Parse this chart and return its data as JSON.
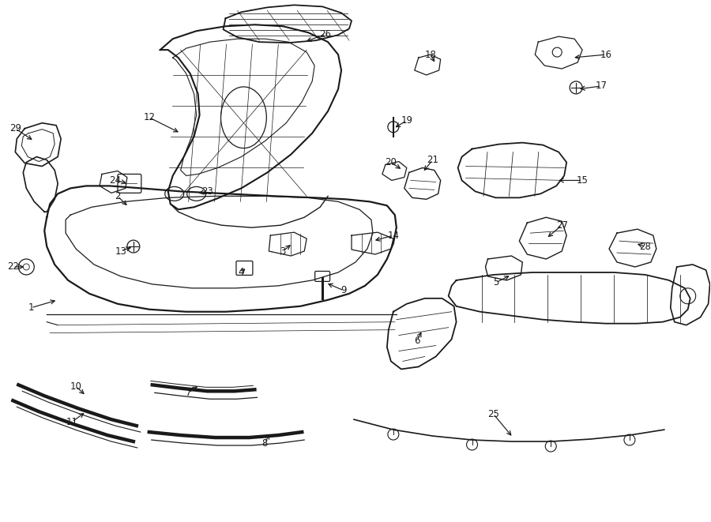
{
  "bg_color": "#ffffff",
  "line_color": "#1a1a1a",
  "fig_width": 9.0,
  "fig_height": 6.61,
  "dpi": 100,
  "labels": [
    [
      "1",
      38,
      390,
      72,
      380
    ],
    [
      "2",
      148,
      248,
      162,
      262
    ],
    [
      "3",
      358,
      318,
      370,
      308
    ],
    [
      "4",
      305,
      345,
      312,
      338
    ],
    [
      "5",
      628,
      358,
      648,
      348
    ],
    [
      "6",
      528,
      432,
      535,
      418
    ],
    [
      "7",
      238,
      498,
      252,
      488
    ],
    [
      "8",
      335,
      562,
      342,
      548
    ],
    [
      "9",
      435,
      368,
      412,
      358
    ],
    [
      "10",
      95,
      490,
      108,
      502
    ],
    [
      "11",
      90,
      535,
      108,
      522
    ],
    [
      "12",
      188,
      148,
      228,
      168
    ],
    [
      "13",
      152,
      318,
      168,
      312
    ],
    [
      "14",
      498,
      298,
      472,
      305
    ],
    [
      "15",
      738,
      228,
      705,
      228
    ],
    [
      "16",
      768,
      68,
      725,
      72
    ],
    [
      "17",
      762,
      108,
      732,
      112
    ],
    [
      "18",
      545,
      68,
      552,
      80
    ],
    [
      "19",
      515,
      152,
      498,
      162
    ],
    [
      "20",
      495,
      205,
      510,
      215
    ],
    [
      "21",
      548,
      202,
      535,
      218
    ],
    [
      "22",
      15,
      338,
      32,
      338
    ],
    [
      "23",
      262,
      242,
      248,
      245
    ],
    [
      "24",
      145,
      228,
      162,
      232
    ],
    [
      "25",
      625,
      525,
      650,
      555
    ],
    [
      "26",
      412,
      42,
      385,
      52
    ],
    [
      "27",
      712,
      285,
      692,
      302
    ],
    [
      "28",
      818,
      312,
      805,
      308
    ],
    [
      "29",
      18,
      162,
      42,
      178
    ]
  ]
}
